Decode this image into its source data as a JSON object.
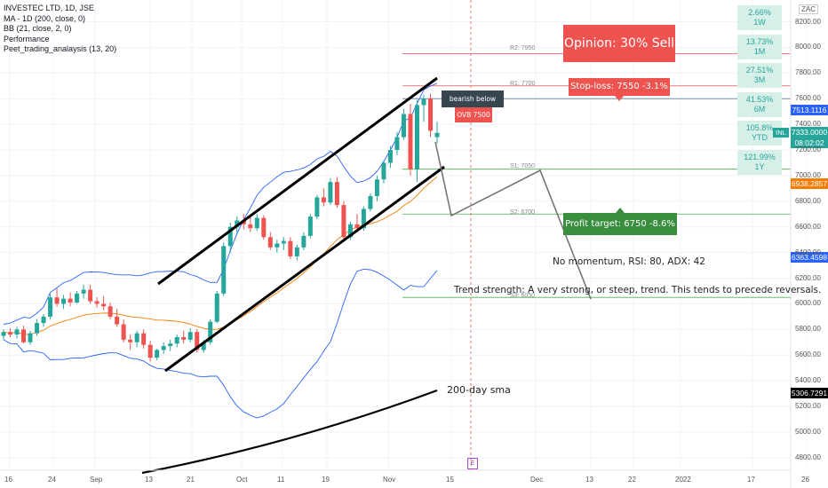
{
  "legend": {
    "symbol": "INVESTEC LTD, 1D, JSE",
    "ma": "MA - 1D (200, close, 0)",
    "bb": "BB (21, close, 2, 0)",
    "perf": "Performance",
    "custom": "Peet_trading_analaysis (13, 20)"
  },
  "currency": "ZAC",
  "performance": [
    {
      "pct": "2.66%",
      "period": "1W"
    },
    {
      "pct": "13.73%",
      "period": "1M"
    },
    {
      "pct": "27.51%",
      "period": "3M"
    },
    {
      "pct": "41.53%",
      "period": "6M"
    },
    {
      "pct": "105.8%",
      "period": "YTD"
    },
    {
      "pct": "121.99%",
      "period": "1Y"
    }
  ],
  "annotations": {
    "opinion": "Opinion: 30% Sell",
    "stoploss": "Stop-loss: 7550 -3.1%",
    "bearish": "bearish below 7600",
    "ovb": "OVB 7500",
    "profit": "Profit target: 6750 -8.6%",
    "momentum": "No momentum, RSI: 80, ADX: 42",
    "trend": "Trend strength: A very strong, or steep, trend. This tends to precede reversals.",
    "sma": "200-day sma",
    "event": "E"
  },
  "pivots": {
    "r2": "R2: 7950",
    "r1": "R1: 7700",
    "s1": "S1: 7050",
    "s2": "S2: 6700",
    "s3": "S3: 6050"
  },
  "price_tags": {
    "upper": "7513.1116",
    "symbol": "INL",
    "last": "7333.0000",
    "countdown": "08:02:02",
    "mid": "6938.2857",
    "lower": "6363.4598",
    "sma": "5306.7291"
  },
  "colors": {
    "up": "#26a69a",
    "down": "#ef5350",
    "bb": "#2962ff",
    "ma": "#f57c00",
    "sma": "#000000",
    "pivot": "#4caf50",
    "resist": "#ef5350"
  },
  "chart_data": {
    "type": "candlestick",
    "title": "INVESTEC LTD, 1D, JSE",
    "yticks": [
      4800,
      5000,
      5200,
      5400,
      5600,
      5800,
      6000,
      6200,
      6400,
      6600,
      6800,
      7000,
      7200,
      7400,
      7600,
      7800,
      8000,
      8200
    ],
    "xticks": [
      "16",
      "24",
      "Sep",
      "13",
      "21",
      "Oct",
      "11",
      "19",
      "Nov",
      "15",
      "Dec",
      "13",
      "22",
      "2022",
      "17",
      "26"
    ],
    "ylim": [
      4650,
      8350
    ],
    "candles": [
      [
        5750,
        5800,
        5720,
        5780
      ],
      [
        5780,
        5810,
        5740,
        5760
      ],
      [
        5760,
        5820,
        5730,
        5800
      ],
      [
        5800,
        5830,
        5690,
        5700
      ],
      [
        5700,
        5790,
        5680,
        5770
      ],
      [
        5770,
        5880,
        5750,
        5850
      ],
      [
        5850,
        5920,
        5820,
        5900
      ],
      [
        5900,
        6080,
        5880,
        6050
      ],
      [
        6050,
        6120,
        5980,
        6000
      ],
      [
        6000,
        6070,
        5960,
        6040
      ],
      [
        6040,
        6090,
        5980,
        6010
      ],
      [
        6010,
        6100,
        6000,
        6080
      ],
      [
        6080,
        6150,
        6040,
        6110
      ],
      [
        6110,
        6150,
        6000,
        6020
      ],
      [
        6020,
        6050,
        5970,
        6000
      ],
      [
        6000,
        6060,
        5950,
        5980
      ],
      [
        5980,
        6010,
        5880,
        5900
      ],
      [
        5900,
        5960,
        5820,
        5840
      ],
      [
        5840,
        5880,
        5700,
        5720
      ],
      [
        5720,
        5760,
        5640,
        5700
      ],
      [
        5700,
        5790,
        5660,
        5770
      ],
      [
        5770,
        5800,
        5650,
        5680
      ],
      [
        5680,
        5710,
        5550,
        5580
      ],
      [
        5580,
        5650,
        5560,
        5640
      ],
      [
        5640,
        5700,
        5610,
        5670
      ],
      [
        5670,
        5720,
        5630,
        5690
      ],
      [
        5690,
        5760,
        5660,
        5740
      ],
      [
        5740,
        5790,
        5690,
        5720
      ],
      [
        5720,
        5810,
        5700,
        5780
      ],
      [
        5780,
        5800,
        5620,
        5640
      ],
      [
        5640,
        5720,
        5620,
        5700
      ],
      [
        5700,
        5880,
        5680,
        5860
      ],
      [
        5860,
        6100,
        5850,
        6080
      ],
      [
        6080,
        6480,
        6060,
        6450
      ],
      [
        6450,
        6630,
        6400,
        6600
      ],
      [
        6600,
        6680,
        6540,
        6650
      ],
      [
        6650,
        6700,
        6580,
        6620
      ],
      [
        6620,
        6680,
        6560,
        6590
      ],
      [
        6590,
        6700,
        6570,
        6670
      ],
      [
        6670,
        6690,
        6500,
        6520
      ],
      [
        6520,
        6560,
        6420,
        6440
      ],
      [
        6440,
        6500,
        6400,
        6470
      ],
      [
        6470,
        6520,
        6420,
        6490
      ],
      [
        6490,
        6520,
        6350,
        6370
      ],
      [
        6370,
        6460,
        6340,
        6440
      ],
      [
        6440,
        6560,
        6420,
        6530
      ],
      [
        6530,
        6700,
        6510,
        6680
      ],
      [
        6680,
        6850,
        6660,
        6830
      ],
      [
        6830,
        6900,
        6760,
        6790
      ],
      [
        6790,
        6980,
        6770,
        6950
      ],
      [
        6950,
        6990,
        6750,
        6770
      ],
      [
        6770,
        6800,
        6490,
        6520
      ],
      [
        6520,
        6640,
        6500,
        6620
      ],
      [
        6620,
        6700,
        6560,
        6590
      ],
      [
        6590,
        6760,
        6570,
        6740
      ],
      [
        6740,
        6860,
        6720,
        6840
      ],
      [
        6840,
        7000,
        6800,
        6970
      ],
      [
        6970,
        7120,
        6940,
        7100
      ],
      [
        7100,
        7230,
        7060,
        7200
      ],
      [
        7200,
        7340,
        7160,
        7300
      ],
      [
        7300,
        7520,
        7280,
        7480
      ],
      [
        7480,
        7560,
        7000,
        7050
      ],
      [
        7050,
        7590,
        6950,
        7550
      ],
      [
        7550,
        7630,
        7420,
        7600
      ],
      [
        7600,
        7640,
        7300,
        7350
      ],
      [
        7300,
        7420,
        7250,
        7333
      ]
    ]
  }
}
